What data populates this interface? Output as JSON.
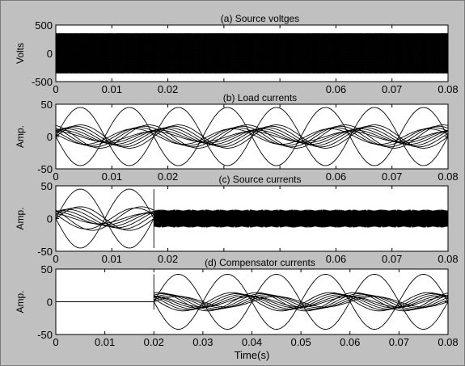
{
  "chart_data": [
    {
      "type": "line",
      "title": "(a) Source voltges",
      "ylabel": "Volts",
      "xlabel": "",
      "xlim": [
        0,
        0.08
      ],
      "ylim": [
        -500,
        500
      ],
      "xticks": [
        "0",
        "0.01",
        "0.02",
        "",
        "",
        "0.06",
        "0.07",
        "0.08"
      ],
      "yticks": [
        "500",
        "0",
        "-500"
      ],
      "yticks_values": [
        500,
        0,
        -500
      ],
      "series": [
        {
          "waveform": "dense sinusoidal bundle, many phase-shifted phases",
          "amplitude": 350,
          "frequency_hz": 50,
          "phases": 24,
          "x_start": 0,
          "x_end": 0.08
        }
      ]
    },
    {
      "type": "line",
      "title": "(b) Load currents",
      "ylabel": "Amp.",
      "xlabel": "",
      "xlim": [
        0,
        0.08
      ],
      "ylim": [
        -50,
        50
      ],
      "xticks": [
        "0",
        "0.01",
        "0.02",
        "",
        "",
        "0.06",
        "0.07",
        "0.08"
      ],
      "yticks": [
        "50",
        "0",
        "-50"
      ],
      "yticks_values": [
        50,
        0,
        -50
      ],
      "series": [
        {
          "waveform": "large sinusoid",
          "amplitude": 45,
          "frequency_hz": 50,
          "phase_deg": 0
        },
        {
          "waveform": "large sinusoid",
          "amplitude": 45,
          "frequency_hz": 50,
          "phase_deg": 180
        },
        {
          "waveform": "small sinusoid bundle",
          "amplitudes": [
            18,
            16,
            14,
            12,
            10,
            8,
            18,
            16,
            14,
            12
          ],
          "frequency_hz": 50
        }
      ]
    },
    {
      "type": "line",
      "title": "(c) Source currents",
      "ylabel": "Amp.",
      "xlabel": "",
      "xlim": [
        0,
        0.08
      ],
      "ylim": [
        -50,
        50
      ],
      "xticks": [
        "0",
        "0.01",
        "0.02",
        "",
        "",
        "0.06",
        "0.07",
        "0.08"
      ],
      "yticks": [
        "50",
        "0",
        "-50"
      ],
      "yticks_values": [
        50,
        0,
        -50
      ],
      "series": [
        {
          "waveform": "load currents before compensation",
          "x_start": 0,
          "x_end": 0.02,
          "amplitude": 45
        },
        {
          "waveform": "compensated dense balanced band",
          "x_start": 0.02,
          "x_end": 0.08,
          "amplitude": 12
        }
      ]
    },
    {
      "type": "line",
      "title": "(d) Compensator currents",
      "ylabel": "Amp.",
      "xlabel": "Time(s)",
      "xlim": [
        0,
        0.08
      ],
      "ylim": [
        -50,
        50
      ],
      "xticks": [
        "0",
        "0.01",
        "0.02",
        "0.03",
        "0.04",
        "0.05",
        "0.06",
        "0.07",
        "0.08"
      ],
      "yticks": [
        "50",
        "0",
        "-50"
      ],
      "yticks_values": [
        50,
        0,
        -50
      ],
      "series": [
        {
          "waveform": "zero before switching",
          "x_start": 0,
          "x_end": 0.02,
          "value": 0
        },
        {
          "waveform": "large sinusoid",
          "x_start": 0.02,
          "x_end": 0.08,
          "amplitude": 42,
          "frequency_hz": 50
        },
        {
          "waveform": "large sinusoid",
          "x_start": 0.02,
          "x_end": 0.08,
          "amplitude": 42,
          "frequency_hz": 50,
          "phase_deg": 180
        },
        {
          "waveform": "small sinusoid bundle",
          "x_start": 0.02,
          "x_end": 0.08,
          "amplitude": 12,
          "frequency_hz": 50
        }
      ]
    }
  ]
}
